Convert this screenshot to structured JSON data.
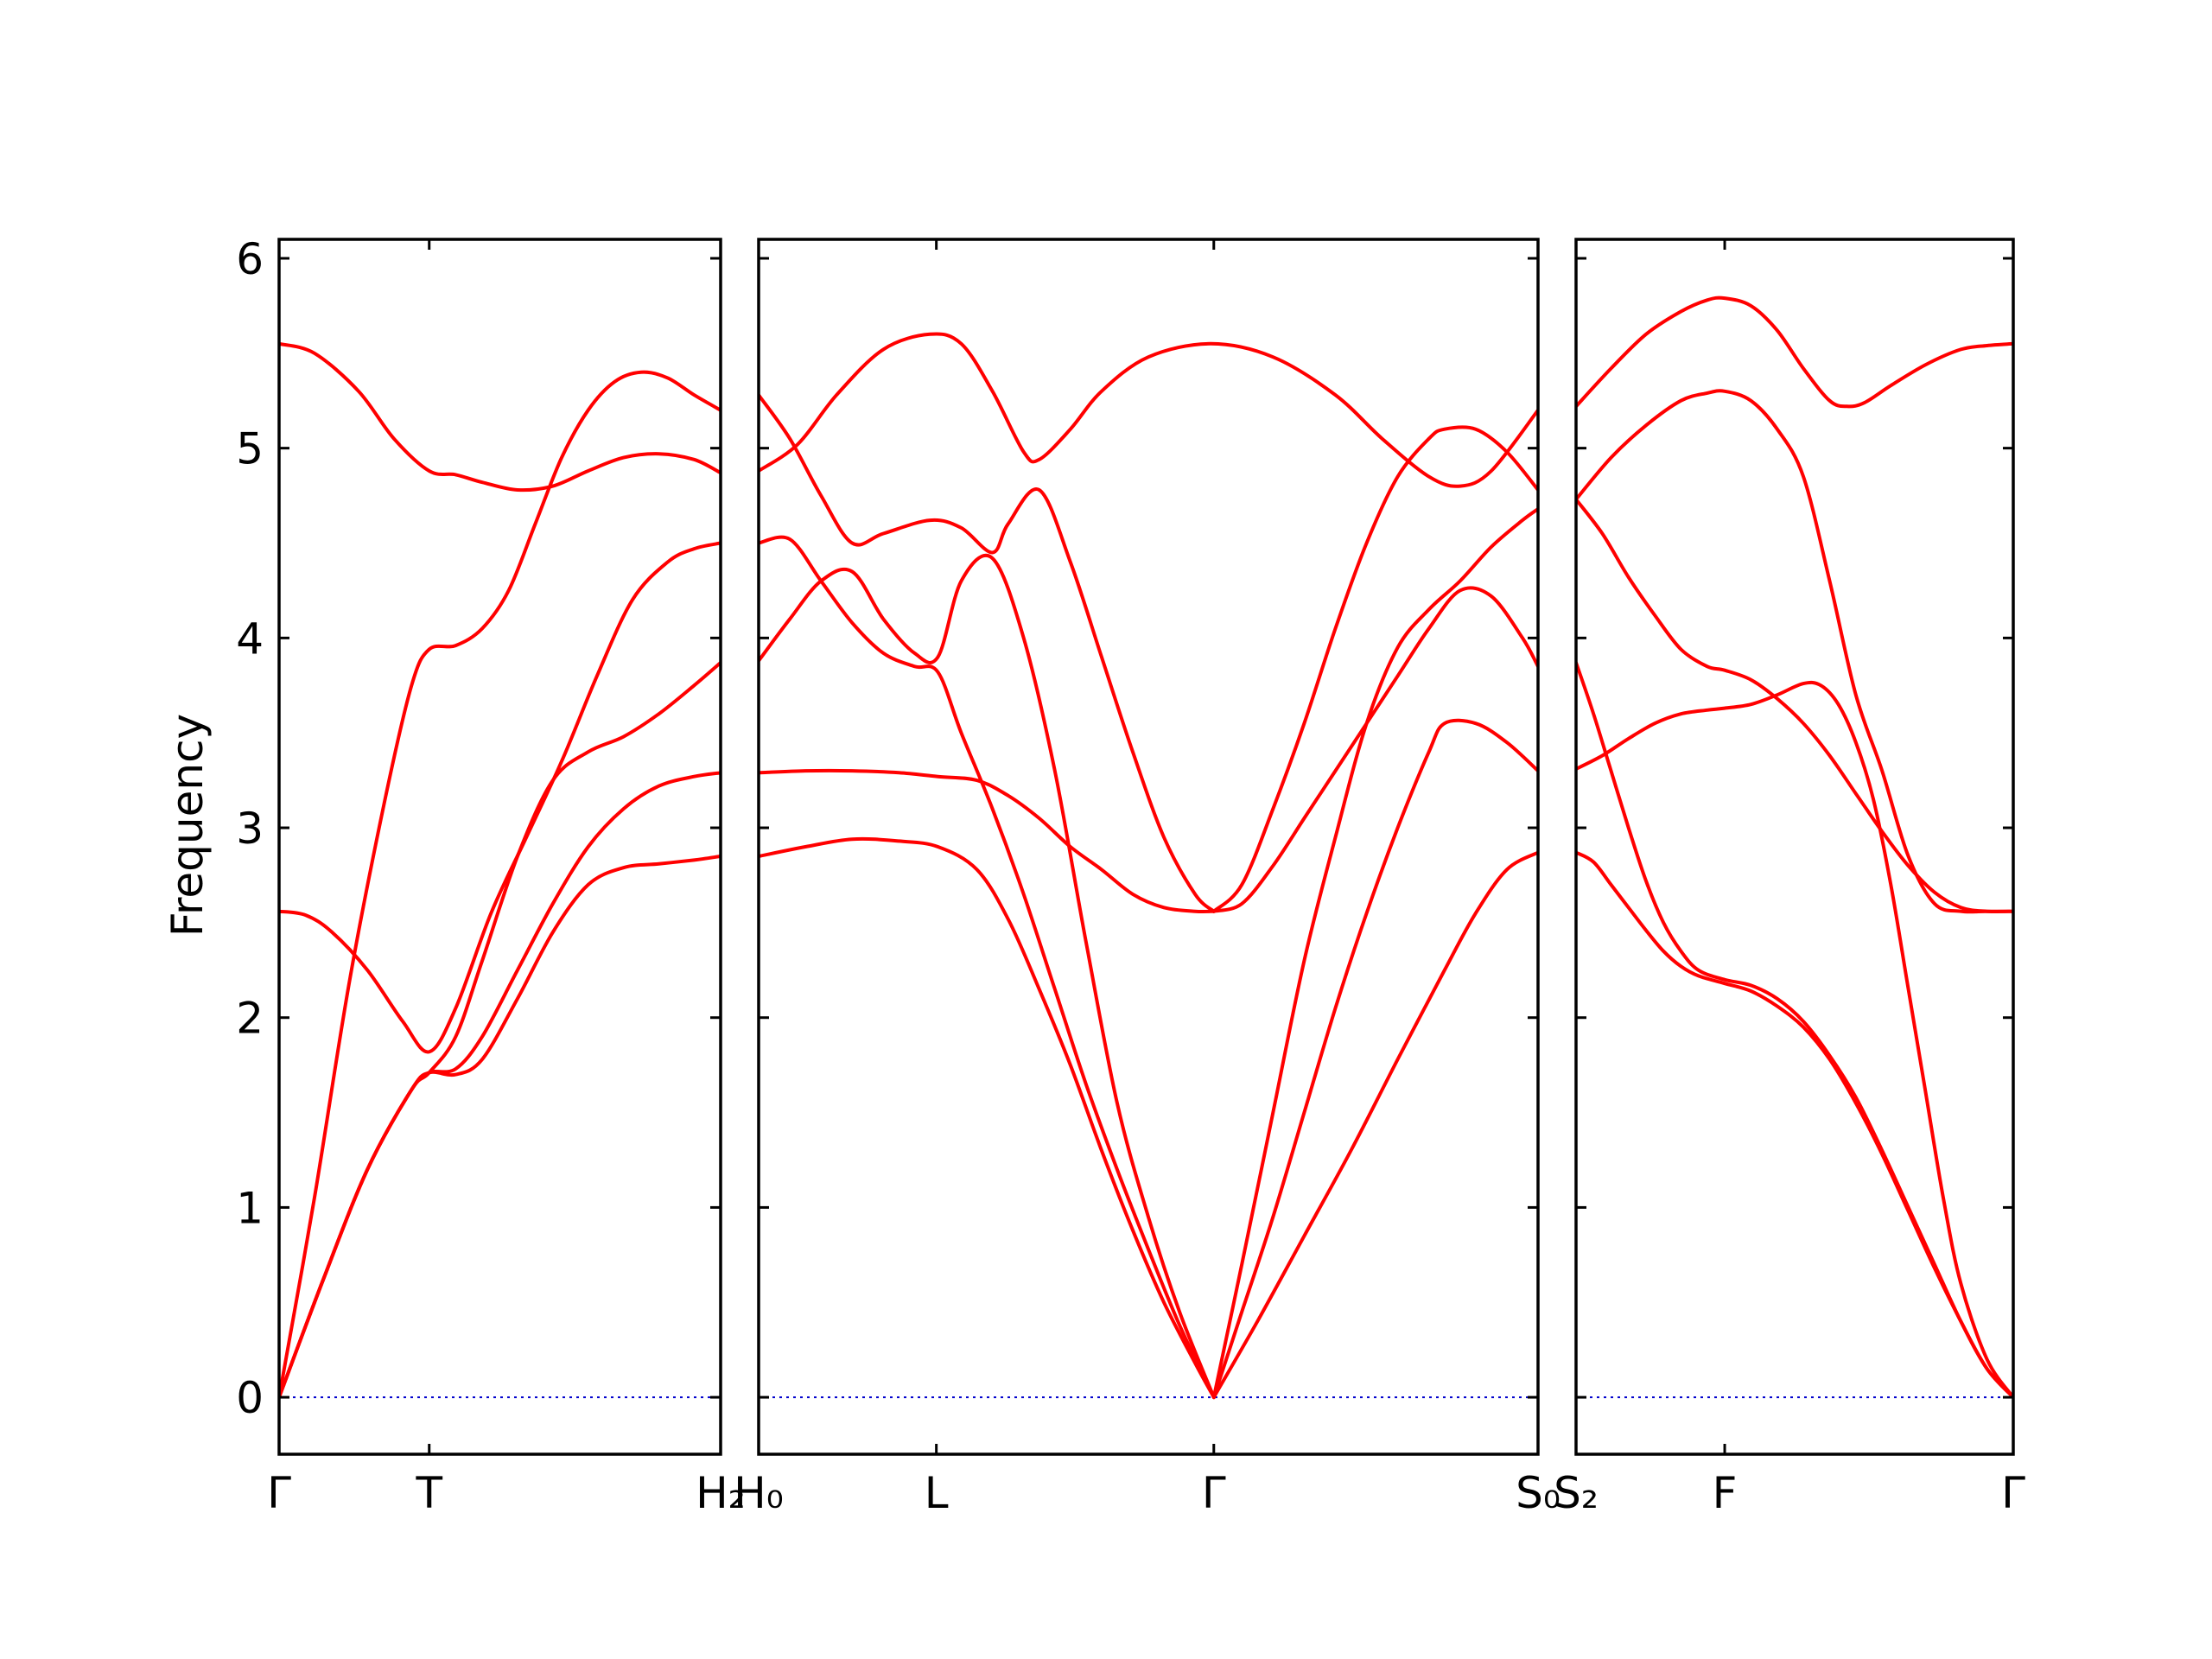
{
  "chart_data": {
    "type": "line",
    "title": "",
    "ylabel": "Frequency",
    "ylim": [
      -0.3,
      6.1
    ],
    "yticks": [
      0,
      1,
      2,
      3,
      4,
      5,
      6
    ],
    "grid": false,
    "colors": {
      "bands": "#ff0000",
      "zero_line": "#0000cc",
      "axes": "#000000"
    },
    "panels": [
      {
        "xlim": [
          0,
          1
        ],
        "ticks": [
          {
            "x": 0,
            "label": "Γ"
          },
          {
            "x": 0.34,
            "label": "T"
          },
          {
            "x": 1,
            "label": "H₂"
          }
        ],
        "series": [
          {
            "x": [
              0,
              0.08,
              0.18,
              0.26,
              0.34,
              0.4,
              0.46,
              0.54,
              0.62,
              0.7,
              0.78,
              0.86,
              0.94,
              1.0
            ],
            "y": [
              5.55,
              5.5,
              5.3,
              5.05,
              4.88,
              4.86,
              4.82,
              4.78,
              4.8,
              4.88,
              4.95,
              4.97,
              4.94,
              4.87
            ]
          },
          {
            "x": [
              0,
              0.08,
              0.16,
              0.24,
              0.3,
              0.34,
              0.4,
              0.46,
              0.52,
              0.58,
              0.64,
              0.7,
              0.76,
              0.82,
              0.88,
              0.94,
              1.0
            ],
            "y": [
              0.0,
              1.05,
              2.2,
              3.15,
              3.75,
              3.94,
              3.96,
              4.05,
              4.25,
              4.6,
              4.95,
              5.2,
              5.35,
              5.4,
              5.37,
              5.28,
              5.2
            ]
          },
          {
            "x": [
              0,
              0.06,
              0.12,
              0.2,
              0.28,
              0.34,
              0.4,
              0.48,
              0.56,
              0.64,
              0.72,
              0.8,
              0.88,
              0.94,
              1.0
            ],
            "y": [
              2.56,
              2.54,
              2.45,
              2.25,
              1.98,
              1.82,
              2.05,
              2.55,
              2.95,
              3.35,
              3.8,
              4.2,
              4.4,
              4.47,
              4.5
            ]
          },
          {
            "x": [
              0,
              0.1,
              0.2,
              0.3,
              0.34,
              0.4,
              0.46,
              0.54,
              0.62,
              0.7,
              0.78,
              0.86,
              0.94,
              1.0
            ],
            "y": [
              0.0,
              0.62,
              1.2,
              1.62,
              1.71,
              1.9,
              2.3,
              2.85,
              3.25,
              3.4,
              3.48,
              3.6,
              3.75,
              3.87
            ]
          },
          {
            "x": [
              0,
              0.1,
              0.2,
              0.3,
              0.34,
              0.4,
              0.46,
              0.54,
              0.62,
              0.7,
              0.78,
              0.86,
              0.94,
              1.0
            ],
            "y": [
              0.0,
              0.62,
              1.2,
              1.62,
              1.71,
              1.73,
              1.9,
              2.25,
              2.6,
              2.9,
              3.1,
              3.22,
              3.27,
              3.29
            ]
          },
          {
            "x": [
              0,
              0.1,
              0.2,
              0.3,
              0.34,
              0.4,
              0.46,
              0.54,
              0.62,
              0.7,
              0.78,
              0.86,
              0.94,
              1.0
            ],
            "y": [
              0.0,
              0.62,
              1.2,
              1.62,
              1.71,
              1.7,
              1.78,
              2.1,
              2.45,
              2.7,
              2.79,
              2.81,
              2.83,
              2.85
            ]
          }
        ]
      },
      {
        "xlim": [
          0,
          1
        ],
        "ticks": [
          {
            "x": 0,
            "label": "H₀"
          },
          {
            "x": 0.228,
            "label": "L"
          },
          {
            "x": 0.584,
            "label": "Γ"
          },
          {
            "x": 1,
            "label": "S₀"
          }
        ],
        "series": [
          {
            "x": [
              0,
              0.05,
              0.1,
              0.16,
              0.22,
              0.26,
              0.3,
              0.34,
              0.36,
              0.4,
              0.44,
              0.5,
              0.58,
              0.66,
              0.74,
              0.8,
              0.86,
              0.9,
              0.94,
              1.0
            ],
            "y": [
              4.88,
              5.02,
              5.28,
              5.52,
              5.6,
              5.55,
              5.3,
              4.98,
              4.94,
              5.1,
              5.3,
              5.48,
              5.55,
              5.48,
              5.28,
              5.05,
              4.85,
              4.8,
              4.88,
              5.2
            ]
          },
          {
            "x": [
              0,
              0.04,
              0.08,
              0.12,
              0.16,
              0.22,
              0.26,
              0.3,
              0.32,
              0.36,
              0.4,
              0.44,
              0.48,
              0.52,
              0.56,
              0.584
            ],
            "y": [
              5.28,
              5.05,
              4.75,
              4.5,
              4.55,
              4.62,
              4.58,
              4.45,
              4.6,
              4.78,
              4.4,
              3.9,
              3.4,
              2.95,
              2.65,
              2.56
            ]
          },
          {
            "x": [
              0,
              0.04,
              0.08,
              0.12,
              0.16,
              0.2,
              0.23,
              0.26,
              0.3,
              0.34,
              0.38,
              0.42,
              0.46,
              0.5,
              0.54,
              0.584
            ],
            "y": [
              4.5,
              4.52,
              4.3,
              4.08,
              3.92,
              3.85,
              3.82,
              3.5,
              3.1,
              2.65,
              2.15,
              1.65,
              1.2,
              0.78,
              0.38,
              0.0
            ]
          },
          {
            "x": [
              0,
              0.04,
              0.08,
              0.12,
              0.16,
              0.2,
              0.23,
              0.26,
              0.3,
              0.34,
              0.38,
              0.42,
              0.46,
              0.5,
              0.54,
              0.584
            ],
            "y": [
              3.88,
              4.1,
              4.3,
              4.35,
              4.1,
              3.92,
              3.9,
              4.3,
              4.42,
              4.0,
              3.3,
              2.4,
              1.55,
              0.95,
              0.45,
              0.0
            ]
          },
          {
            "x": [
              0,
              0.06,
              0.12,
              0.18,
              0.23,
              0.28,
              0.32,
              0.36,
              0.4,
              0.44,
              0.48,
              0.52,
              0.56,
              0.584
            ],
            "y": [
              3.29,
              3.3,
              3.3,
              3.29,
              3.27,
              3.25,
              3.17,
              3.05,
              2.9,
              2.78,
              2.65,
              2.58,
              2.56,
              2.56
            ]
          },
          {
            "x": [
              0,
              0.06,
              0.12,
              0.18,
              0.23,
              0.28,
              0.32,
              0.36,
              0.4,
              0.44,
              0.48,
              0.52,
              0.56,
              0.584
            ],
            "y": [
              2.85,
              2.9,
              2.94,
              2.93,
              2.9,
              2.78,
              2.52,
              2.15,
              1.75,
              1.3,
              0.88,
              0.5,
              0.18,
              0.0
            ]
          },
          {
            "x": [
              0.584,
              0.62,
              0.66,
              0.7,
              0.74,
              0.78,
              0.82,
              0.86,
              0.88,
              0.92,
              0.96,
              1.0
            ],
            "y": [
              2.56,
              2.7,
              3.1,
              3.55,
              4.05,
              4.5,
              4.85,
              5.05,
              5.1,
              5.1,
              4.98,
              4.78
            ]
          },
          {
            "x": [
              0.584,
              0.62,
              0.66,
              0.7,
              0.74,
              0.78,
              0.82,
              0.86,
              0.9,
              0.94,
              0.98,
              1.0
            ],
            "y": [
              2.56,
              2.6,
              2.8,
              3.05,
              3.3,
              3.55,
              3.8,
              4.05,
              4.25,
              4.22,
              4.0,
              3.85
            ]
          },
          {
            "x": [
              0.584,
              0.62,
              0.66,
              0.7,
              0.74,
              0.78,
              0.82,
              0.86,
              0.9,
              0.94,
              0.98,
              1.0
            ],
            "y": [
              0.0,
              0.7,
              1.5,
              2.3,
              2.95,
              3.55,
              3.95,
              4.15,
              4.3,
              4.48,
              4.62,
              4.68
            ]
          },
          {
            "x": [
              0.584,
              0.62,
              0.66,
              0.7,
              0.74,
              0.78,
              0.82,
              0.86,
              0.88,
              0.92,
              0.96,
              1.0
            ],
            "y": [
              0.0,
              0.45,
              0.95,
              1.5,
              2.05,
              2.55,
              3.0,
              3.4,
              3.55,
              3.55,
              3.45,
              3.3
            ]
          },
          {
            "x": [
              0.584,
              0.64,
              0.7,
              0.76,
              0.82,
              0.88,
              0.92,
              0.96,
              1.0
            ],
            "y": [
              0.0,
              0.4,
              0.85,
              1.3,
              1.78,
              2.25,
              2.55,
              2.78,
              2.87
            ]
          }
        ]
      },
      {
        "xlim": [
          0,
          1
        ],
        "ticks": [
          {
            "x": 0,
            "label": "S₂"
          },
          {
            "x": 0.34,
            "label": "F"
          },
          {
            "x": 1,
            "label": "Γ"
          }
        ],
        "series": [
          {
            "x": [
              0,
              0.08,
              0.16,
              0.24,
              0.3,
              0.34,
              0.4,
              0.46,
              0.52,
              0.58,
              0.62,
              0.66,
              0.72,
              0.8,
              0.88,
              0.94,
              1.0
            ],
            "y": [
              5.22,
              5.42,
              5.6,
              5.72,
              5.78,
              5.79,
              5.75,
              5.62,
              5.42,
              5.25,
              5.22,
              5.24,
              5.33,
              5.44,
              5.52,
              5.54,
              5.55
            ]
          },
          {
            "x": [
              0,
              0.08,
              0.16,
              0.24,
              0.3,
              0.34,
              0.4,
              0.46,
              0.52,
              0.58,
              0.64,
              0.7,
              0.76,
              0.82,
              0.88,
              0.94,
              1.0
            ],
            "y": [
              4.73,
              4.95,
              5.12,
              5.25,
              5.29,
              5.3,
              5.25,
              5.1,
              4.85,
              4.3,
              3.7,
              3.3,
              2.85,
              2.6,
              2.56,
              2.56,
              2.56
            ]
          },
          {
            "x": [
              0,
              0.06,
              0.12,
              0.18,
              0.24,
              0.3,
              0.34,
              0.4,
              0.46,
              0.52,
              0.58,
              0.64,
              0.7,
              0.76,
              0.82,
              0.88,
              0.94,
              1.0
            ],
            "y": [
              4.73,
              4.55,
              4.32,
              4.12,
              3.94,
              3.85,
              3.83,
              3.78,
              3.68,
              3.55,
              3.38,
              3.18,
              2.98,
              2.8,
              2.66,
              2.58,
              2.56,
              2.56
            ]
          },
          {
            "x": [
              0,
              0.06,
              0.12,
              0.18,
              0.24,
              0.3,
              0.34,
              0.4,
              0.46,
              0.52,
              0.56,
              0.6,
              0.64,
              0.68,
              0.72,
              0.76,
              0.8,
              0.84,
              0.88,
              0.94,
              1.0
            ],
            "y": [
              3.31,
              3.38,
              3.47,
              3.55,
              3.6,
              3.62,
              3.63,
              3.65,
              3.7,
              3.76,
              3.75,
              3.65,
              3.45,
              3.15,
              2.7,
              2.15,
              1.6,
              1.05,
              0.6,
              0.2,
              0.0
            ]
          },
          {
            "x": [
              0,
              0.04,
              0.08,
              0.12,
              0.16,
              0.2,
              0.24,
              0.28,
              0.34,
              0.4,
              0.46,
              0.52,
              0.58,
              0.64,
              0.7,
              0.76,
              0.82,
              0.88,
              0.94,
              1.0
            ],
            "y": [
              3.87,
              3.6,
              3.3,
              3.0,
              2.72,
              2.5,
              2.35,
              2.25,
              2.2,
              2.17,
              2.1,
              1.98,
              1.8,
              1.58,
              1.3,
              1.0,
              0.7,
              0.4,
              0.15,
              0.0
            ]
          },
          {
            "x": [
              0,
              0.04,
              0.08,
              0.12,
              0.16,
              0.2,
              0.24,
              0.28,
              0.34,
              0.4,
              0.46,
              0.52,
              0.58,
              0.64,
              0.7,
              0.76,
              0.82,
              0.88,
              0.94,
              1.0
            ],
            "y": [
              2.87,
              2.82,
              2.7,
              2.58,
              2.46,
              2.35,
              2.27,
              2.22,
              2.18,
              2.14,
              2.06,
              1.95,
              1.78,
              1.55,
              1.28,
              0.98,
              0.68,
              0.4,
              0.15,
              0.0
            ]
          }
        ]
      }
    ]
  }
}
